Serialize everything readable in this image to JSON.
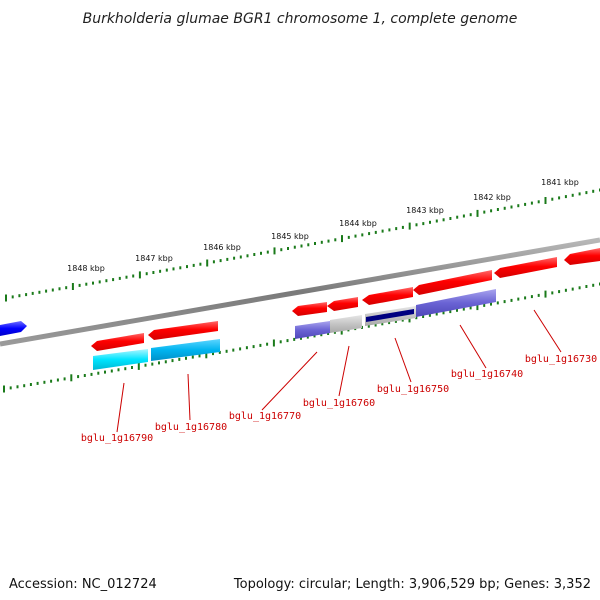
{
  "title": "Burkholderia glumae BGR1 chromosome 1, complete genome",
  "accession": "Accession: NC_012724",
  "topology": "Topology: circular; Length: 3,906,529 bp; Genes: 3,352",
  "colors": {
    "backbone": "#808080",
    "ticks": "#1a7a1a",
    "forward_gene": "#ff0000",
    "label": "#cc0000",
    "cyan_gene": "#00e5ff",
    "blue_gene": "#0000ff",
    "slate_gene": "#6a63d4",
    "gray_gene": "#c4c4c4",
    "navy_gene": "#000080"
  },
  "kbp_labels": [
    "1848 kbp",
    "1847 kbp",
    "1846 kbp",
    "1845 kbp",
    "1844 kbp",
    "1843 kbp",
    "1842 kbp",
    "1841 kbp"
  ],
  "gene_labels": [
    "bglu_1g16790",
    "bglu_1g16780",
    "bglu_1g16770",
    "bglu_1g16760",
    "bglu_1g16750",
    "bglu_1g16740",
    "bglu_1g16730"
  ]
}
